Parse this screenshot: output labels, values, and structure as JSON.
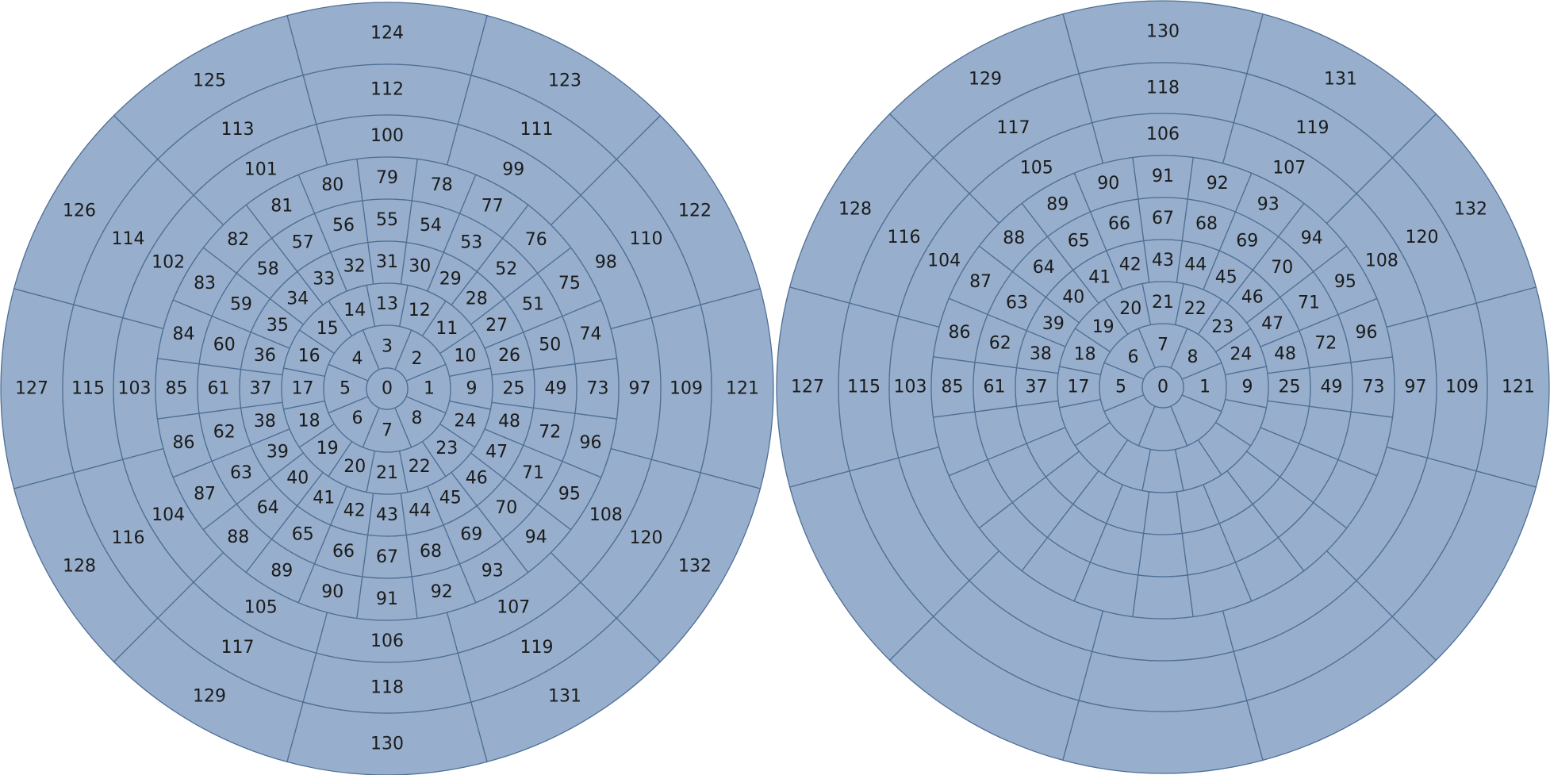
{
  "diagrams": [
    {
      "name": "left-disk",
      "rings": [
        {
          "cells": 1,
          "start_index": 0
        },
        {
          "cells": 8,
          "start_index": 1
        },
        {
          "cells": 16,
          "start_index": 9
        },
        {
          "cells": 24,
          "start_index": 25
        },
        {
          "cells": 24,
          "start_index": 49
        },
        {
          "cells": 24,
          "start_index": 73
        },
        {
          "cells": 12,
          "start_index": 97
        },
        {
          "cells": 12,
          "start_index": 109
        },
        {
          "cells": 12,
          "start_index": 121
        }
      ],
      "numbering": "counterclockwise-from-east"
    },
    {
      "name": "right-disk",
      "rings": [
        {
          "cells": 1,
          "start_index": 0
        },
        {
          "cells": 8,
          "start_index": 1
        },
        {
          "cells": 16,
          "start_index": 9
        },
        {
          "cells": 24,
          "start_index": 25
        },
        {
          "cells": 24,
          "start_index": 49
        },
        {
          "cells": 24,
          "start_index": 73
        },
        {
          "cells": 12,
          "start_index": 97
        },
        {
          "cells": 12,
          "start_index": 109
        },
        {
          "cells": 12,
          "start_index": 121
        }
      ],
      "numbering": "mirrored"
    }
  ],
  "colors": {
    "cell_fill": "#97afcc",
    "cell_stroke": "#4f6f96",
    "label": "#1b1b1b"
  }
}
